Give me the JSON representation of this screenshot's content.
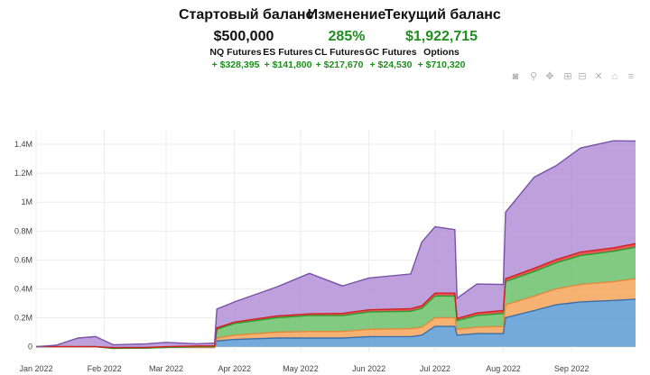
{
  "summary": {
    "start_balance_label": "Стартовый баланс",
    "start_balance_value": "$500,000",
    "change_label": "Изменение",
    "change_value": "285%",
    "current_balance_label": "Текущий баланс",
    "current_balance_value": "$1,922,715"
  },
  "products": [
    {
      "name": "NQ Futures",
      "value": "+ $328,395"
    },
    {
      "name": "ES Futures",
      "value": "+ $141,800"
    },
    {
      "name": "CL Futures",
      "value": "+ $217,670"
    },
    {
      "name": "GC Futures",
      "value": "+ $24,530"
    },
    {
      "name": "Options",
      "value": "+ $710,320"
    }
  ],
  "toolbar": [
    {
      "name": "camera-icon",
      "glyph": "◙"
    },
    {
      "name": "zoom-icon",
      "glyph": "⚲"
    },
    {
      "name": "pan-icon",
      "glyph": "✥"
    },
    {
      "name": "zoom-in-icon",
      "glyph": "⊞"
    },
    {
      "name": "zoom-out-icon",
      "glyph": "⊟"
    },
    {
      "name": "autoscale-icon",
      "glyph": "✕"
    },
    {
      "name": "reset-axes-icon",
      "glyph": "⌂"
    },
    {
      "name": "spike-lines-icon",
      "glyph": "≡"
    }
  ],
  "colors": {
    "green_text": "#1e8e1e",
    "nq": "#5b9bd5",
    "es": "#f5a55a",
    "cl": "#6cc06c",
    "gc": "#e03b3b",
    "options": "#b28fd6"
  },
  "chart_data": {
    "type": "area",
    "stacked": true,
    "x_ticks": [
      "Jan 2022",
      "Feb 2022",
      "Mar 2022",
      "Apr 2022",
      "May 2022",
      "Jun 2022",
      "Jul 2022",
      "Aug 2022",
      "Sep 2022"
    ],
    "y_ticks": [
      "0",
      "0.2M",
      "0.4M",
      "0.6M",
      "0.8M",
      "1M",
      "1.2M",
      "1.4M"
    ],
    "ylim": [
      -40000,
      1500000
    ],
    "xlim": [
      "2022-01-01",
      "2022-09-30"
    ],
    "grid": true,
    "x": [
      "2022-01-01",
      "2022-01-10",
      "2022-01-20",
      "2022-01-28",
      "2022-02-05",
      "2022-02-20",
      "2022-03-01",
      "2022-03-15",
      "2022-03-23",
      "2022-03-24",
      "2022-04-01",
      "2022-04-20",
      "2022-05-05",
      "2022-05-20",
      "2022-06-01",
      "2022-06-20",
      "2022-06-25",
      "2022-07-01",
      "2022-07-10",
      "2022-07-11",
      "2022-07-20",
      "2022-08-01",
      "2022-08-02",
      "2022-08-15",
      "2022-08-25",
      "2022-09-05",
      "2022-09-20",
      "2022-09-30"
    ],
    "series": [
      {
        "name": "NQ Futures",
        "values": [
          0,
          0,
          0,
          0,
          -10000,
          -8000,
          -5000,
          -5000,
          -5000,
          40000,
          50000,
          60000,
          60000,
          60000,
          70000,
          70000,
          80000,
          140000,
          140000,
          80000,
          90000,
          90000,
          200000,
          250000,
          290000,
          310000,
          320000,
          328395
        ]
      },
      {
        "name": "ES Futures",
        "values": [
          0,
          0,
          0,
          0,
          -2000,
          -2000,
          0,
          0,
          0,
          20000,
          30000,
          40000,
          45000,
          45000,
          50000,
          55000,
          55000,
          60000,
          60000,
          40000,
          45000,
          50000,
          90000,
          100000,
          110000,
          120000,
          130000,
          141800
        ]
      },
      {
        "name": "CL Futures",
        "values": [
          0,
          0,
          0,
          0,
          0,
          0,
          0,
          5000,
          5000,
          60000,
          80000,
          100000,
          110000,
          110000,
          120000,
          120000,
          130000,
          150000,
          150000,
          60000,
          80000,
          90000,
          160000,
          170000,
          180000,
          200000,
          210000,
          217670
        ]
      },
      {
        "name": "GC Futures",
        "values": [
          0,
          0,
          0,
          0,
          5000,
          5000,
          5000,
          5000,
          5000,
          10000,
          10000,
          12000,
          12000,
          15000,
          15000,
          18000,
          18000,
          20000,
          20000,
          15000,
          18000,
          20000,
          20000,
          22000,
          22000,
          24000,
          24000,
          24530
        ]
      },
      {
        "name": "Options",
        "values": [
          0,
          10000,
          60000,
          70000,
          20000,
          25000,
          30000,
          15000,
          20000,
          130000,
          140000,
          200000,
          280000,
          190000,
          220000,
          240000,
          440000,
          460000,
          440000,
          140000,
          200000,
          180000,
          460000,
          630000,
          650000,
          720000,
          740000,
          710320
        ]
      }
    ]
  }
}
